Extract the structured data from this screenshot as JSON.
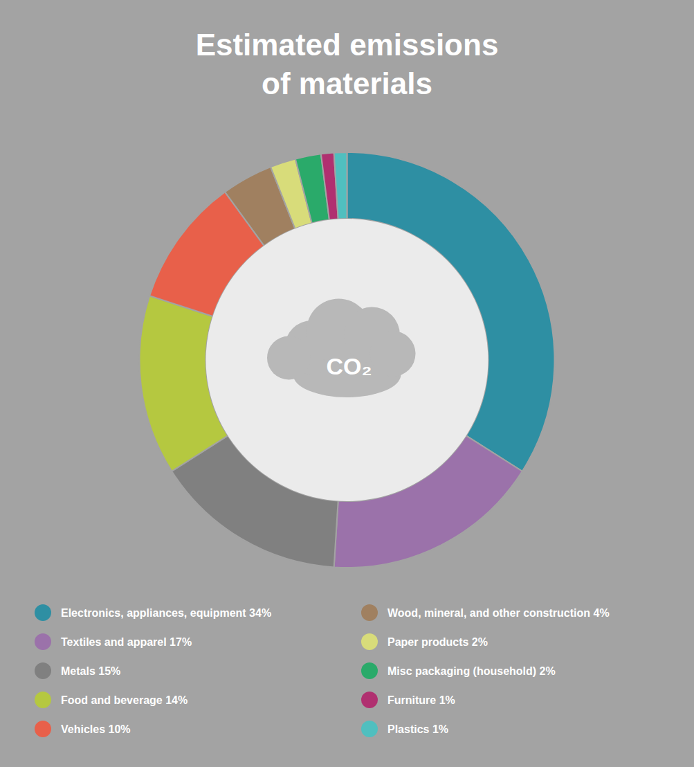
{
  "chart_data": {
    "type": "pie",
    "title": "Estimated emissions\nof materials",
    "categories": [
      "Electronics, appliances, equipment 34%",
      "Textiles and apparel 17%",
      "Metals 15%",
      "Food and beverage 14%",
      "Vehicles 10%",
      "Wood, mineral, and other construction 4%",
      "Paper products 2%",
      "Misc packaging (household) 2%",
      "Furniture 1%",
      "Plastics 1%"
    ],
    "values": [
      34,
      17,
      15,
      14,
      10,
      4,
      2,
      2,
      1,
      1
    ],
    "colors": [
      "#2e8fa3",
      "#9b72aa",
      "#808080",
      "#b5c840",
      "#e8604a",
      "#a08060",
      "#d8dc7a",
      "#2aaa6a",
      "#b03070",
      "#50bfbf"
    ],
    "annotations": [
      "CO₂"
    ],
    "legend": "bottom"
  }
}
